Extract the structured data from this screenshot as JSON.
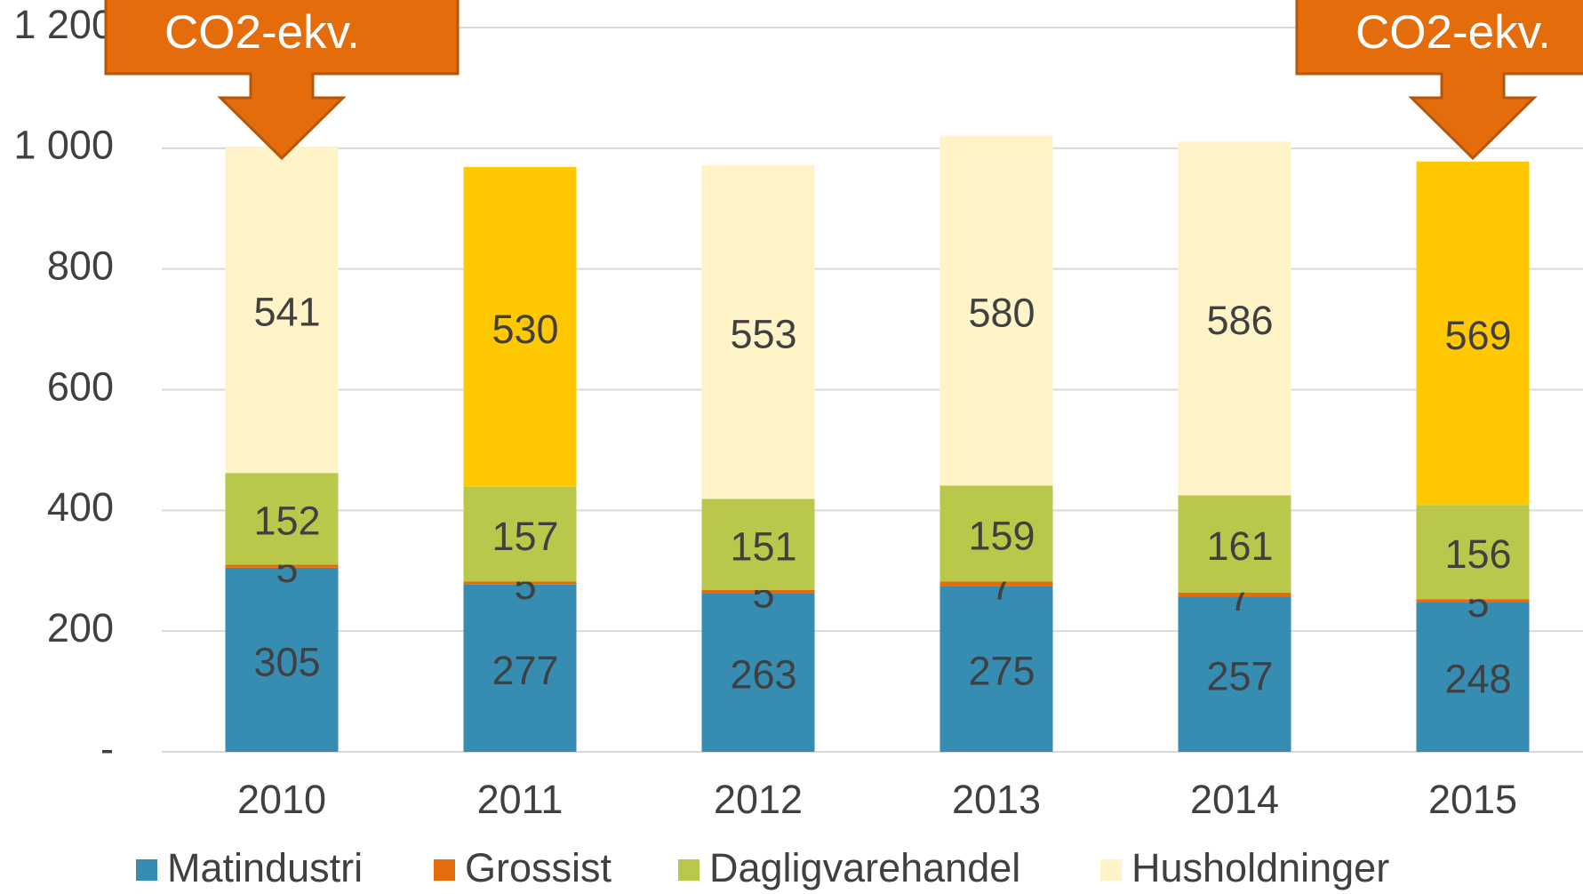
{
  "chart_data": {
    "type": "stacked_bar",
    "categories": [
      "2010",
      "2011",
      "2012",
      "2013",
      "2014",
      "2015"
    ],
    "series": [
      {
        "name": "Matindustri",
        "color": "#368db1",
        "values": [
          305,
          277,
          263,
          275,
          257,
          248
        ]
      },
      {
        "name": "Grossist",
        "color": "#e46c0a",
        "values": [
          5,
          5,
          5,
          7,
          7,
          5
        ]
      },
      {
        "name": "Dagligvarehandel",
        "color": "#b9c84a",
        "values": [
          152,
          157,
          151,
          159,
          161,
          156
        ]
      },
      {
        "name": "Husholdninger",
        "color": "#fff3c8",
        "colors": [
          "#fff3c8",
          "#ffc800",
          "#fff3c8",
          "#fff3c8",
          "#fff3c8",
          "#ffc800"
        ],
        "values": [
          541,
          530,
          553,
          580,
          586,
          569
        ]
      }
    ],
    "ylim": [
      0,
      1200
    ],
    "yticks": [
      {
        "value": 0,
        "label": "-"
      },
      200,
      400,
      600,
      800,
      {
        "value": 1000,
        "label": "1 000"
      },
      {
        "value": 1200,
        "label": "1 200"
      }
    ],
    "grid": true,
    "legend": "bottom",
    "annotations": [
      {
        "text": "CO2-ekv.",
        "category": "2010"
      },
      {
        "text": "CO2-ekv.",
        "category": "2015"
      }
    ]
  }
}
